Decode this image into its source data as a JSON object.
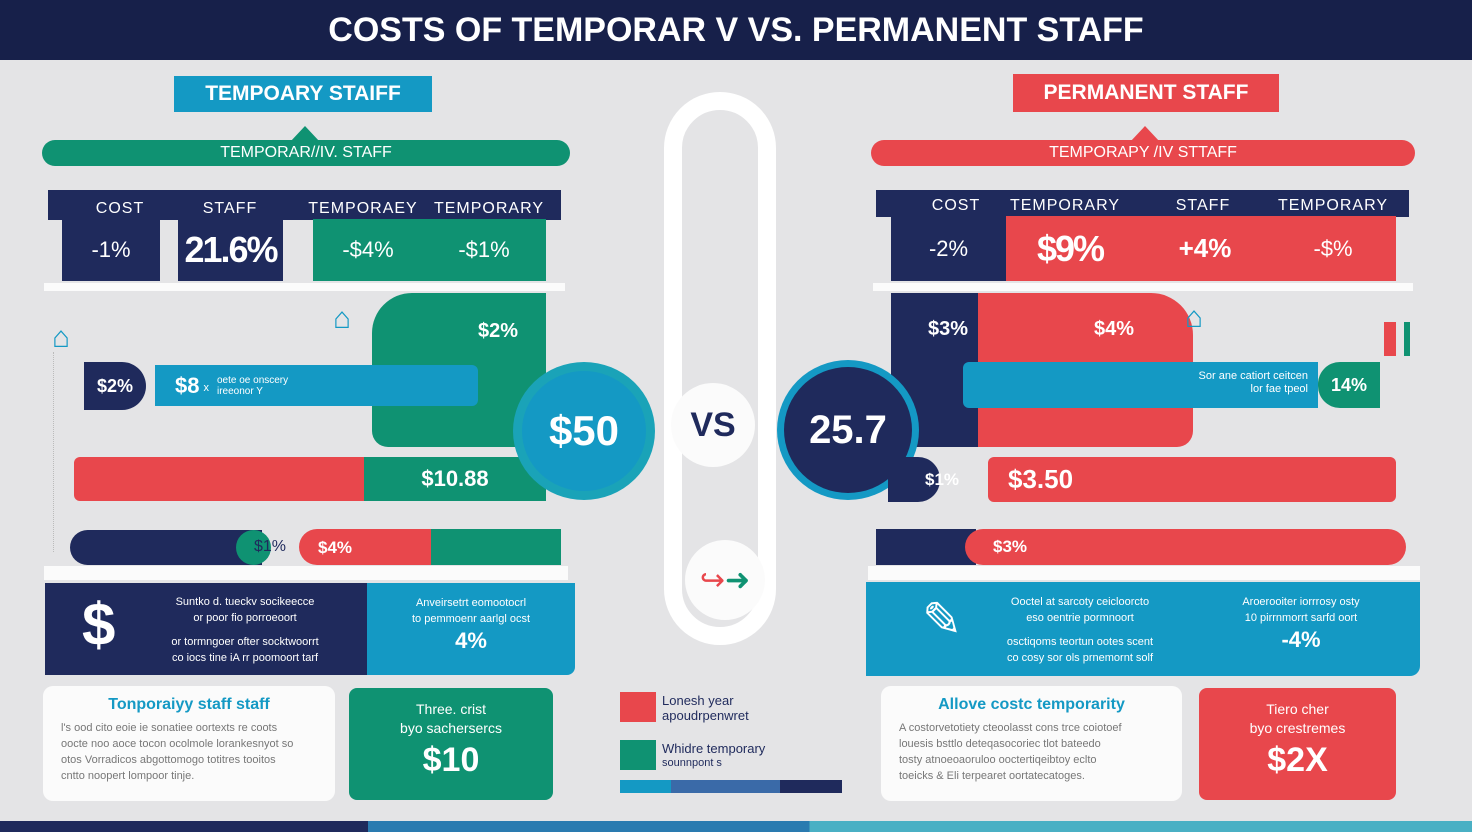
{
  "title": "COSTS OF TEMPORAR V VS. PERMANENT STAFF",
  "colors": {
    "navy": "#1f2a5c",
    "green": "#0f9272",
    "cyan": "#1499c4",
    "red": "#e8474c",
    "background": "#e4e4e6"
  },
  "left": {
    "label": "TEMPOARY STAIFF",
    "banner": "TEMPORAR//IV. STAFF",
    "headers": [
      "COST",
      "STAFF",
      "TEMPORAEY",
      "TEMPORARY"
    ],
    "values": [
      "-1%",
      "21.6%",
      "-$4%",
      "-$1%"
    ],
    "block_value": "$2%",
    "pill_value": "$2%",
    "bar_value": "$8",
    "bar_unit": "x",
    "bar_text": [
      "oete oe onscery",
      "ireeonor Y"
    ],
    "circle_value": "$50",
    "split_bar_value": "$10.88",
    "small_value": "$1%",
    "small_bar_value": "$4%",
    "info_text": [
      "Suntko d. tueckv socikeecce",
      "or poor fio porroeoort",
      "or tormngoer ofter socktwoorrt",
      "co iocs tine iA rr poomoort tarf"
    ],
    "info_right": [
      "Anveirsetrt eomootocrl",
      "to pemmoenr aarlgl ocst"
    ],
    "info_value": "4%",
    "card_title": "Tonporaiyy staff staff",
    "card_text": [
      "l's ood cito eoie ie sonatiee oortexts re coots",
      "oocte noo aoce tocon ocolmole lorankesnyot so",
      "otos Vorradicos abgottomogo totitres tooitos",
      "cntto noopert lompoor tinje."
    ],
    "stat_text": [
      "Three. crist",
      "byo sachersercs"
    ],
    "stat_value": "$10"
  },
  "center": {
    "vs": "VS",
    "icon": "arrow-right-icon",
    "legend": [
      {
        "label": "Lonesh year",
        "sub": "apoudrpenwret",
        "color": "#e8474c"
      },
      {
        "label": "Whidre temporary",
        "sub": "sounnpont s",
        "color": "#0f9272"
      }
    ]
  },
  "right": {
    "label": "PERMANENT STAFF",
    "banner": "TEMPORAPY /IV STTAFF",
    "headers": [
      "COST",
      "TEMPORARY",
      "STAFF",
      "TEMPORARY"
    ],
    "values": [
      "-2%",
      "$9%",
      "+4%",
      "-$%"
    ],
    "navy_value": "$3%",
    "red_value": "$4%",
    "bar_text": [
      "Sor ane catiort ceitcen",
      "lor fae tpeol"
    ],
    "pill_value": "14%",
    "circle_value": "25.7",
    "small_value": "$1%",
    "bar_value": "$3.50",
    "bottom_value": "$3%",
    "info_text": [
      "Ooctel at sarcoty ceicloorcto",
      "eso oentrie pormnoort",
      "osctiqoms teortun ootes scent",
      "co cosy sor ols prnemornt solf"
    ],
    "info_right": [
      "Aroerooiter iorrrosy osty",
      "10 pirrnmorrt sarfd oort"
    ],
    "info_value": "-4%",
    "card_title": "Allove costc temporarity",
    "card_text": [
      "A costorvetotiety cteoolasst cons trce coiotoef",
      "louesis bsttlo deteqasocoriec tlot bateedo",
      "tosty atnoeoaoruloo ooctertiqeibtoy eclto",
      "toeicks & Eli terpearet oortatecatoges."
    ],
    "stat_text": [
      "Tiero cher",
      "byo crestremes"
    ],
    "stat_value": "$2X"
  }
}
